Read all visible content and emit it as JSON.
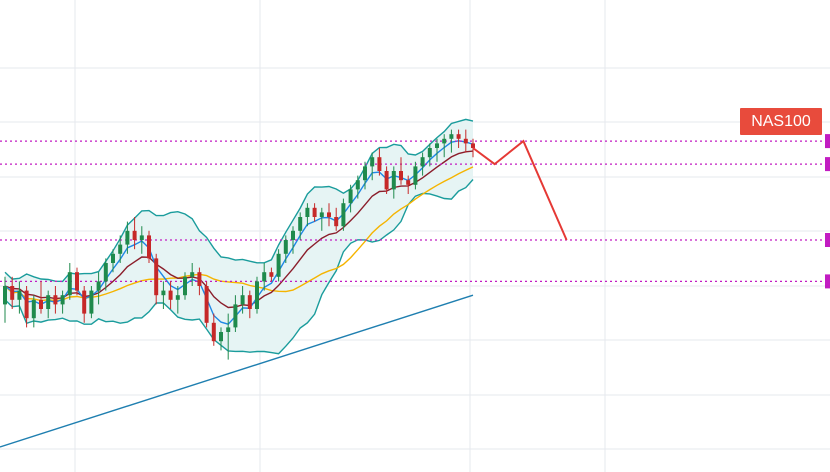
{
  "symbol": "NAS100",
  "colors": {
    "background": "#ffffff",
    "grid": "#e6e9ee",
    "candle_up": "#1f8a4c",
    "candle_down": "#c62828",
    "bollinger_band": "#1a9c9c",
    "bollinger_fill": "#e6f4f4",
    "ma_fast": "#1e88e5",
    "ma_mid": "#8b1e2b",
    "ma_slow": "#f5b400",
    "trendline": "#1f7fb0",
    "levels": "#c21cc2",
    "projection": "#e53935",
    "tag": "#e84b3c"
  },
  "chart_data": {
    "type": "candlestick",
    "title": "",
    "xlabel": "",
    "ylabel": "",
    "ylim": [
      0,
      100
    ],
    "grid": true,
    "indicators": [
      "bollinger-bands",
      "moving-average-fast",
      "moving-average-mid",
      "moving-average-slow",
      "ascending-trendline"
    ],
    "horizontal_levels": [
      71.5,
      66.5,
      50,
      41
    ],
    "candles": [
      {
        "o": 36,
        "h": 42,
        "l": 32,
        "c": 40
      },
      {
        "o": 40,
        "h": 42,
        "l": 35,
        "c": 37
      },
      {
        "o": 37,
        "h": 41,
        "l": 34,
        "c": 39
      },
      {
        "o": 39,
        "h": 40,
        "l": 31,
        "c": 33
      },
      {
        "o": 33,
        "h": 38,
        "l": 31,
        "c": 37
      },
      {
        "o": 37,
        "h": 41,
        "l": 34,
        "c": 35
      },
      {
        "o": 35,
        "h": 39,
        "l": 33,
        "c": 38
      },
      {
        "o": 38,
        "h": 40,
        "l": 34,
        "c": 36
      },
      {
        "o": 36,
        "h": 39,
        "l": 34,
        "c": 38
      },
      {
        "o": 38,
        "h": 45,
        "l": 37,
        "c": 43
      },
      {
        "o": 43,
        "h": 44,
        "l": 38,
        "c": 39
      },
      {
        "o": 39,
        "h": 40,
        "l": 32,
        "c": 34
      },
      {
        "o": 34,
        "h": 40,
        "l": 33,
        "c": 39
      },
      {
        "o": 39,
        "h": 43,
        "l": 36,
        "c": 41
      },
      {
        "o": 41,
        "h": 46,
        "l": 39,
        "c": 45
      },
      {
        "o": 45,
        "h": 48,
        "l": 43,
        "c": 47
      },
      {
        "o": 47,
        "h": 51,
        "l": 45,
        "c": 49
      },
      {
        "o": 49,
        "h": 54,
        "l": 47,
        "c": 52
      },
      {
        "o": 52,
        "h": 55,
        "l": 48,
        "c": 50
      },
      {
        "o": 50,
        "h": 53,
        "l": 47,
        "c": 51
      },
      {
        "o": 51,
        "h": 52,
        "l": 45,
        "c": 46
      },
      {
        "o": 46,
        "h": 47,
        "l": 36,
        "c": 38
      },
      {
        "o": 38,
        "h": 41,
        "l": 35,
        "c": 39
      },
      {
        "o": 39,
        "h": 41,
        "l": 35,
        "c": 37
      },
      {
        "o": 37,
        "h": 40,
        "l": 34,
        "c": 38
      },
      {
        "o": 38,
        "h": 43,
        "l": 37,
        "c": 42
      },
      {
        "o": 42,
        "h": 45,
        "l": 40,
        "c": 43
      },
      {
        "o": 43,
        "h": 44,
        "l": 38,
        "c": 40
      },
      {
        "o": 40,
        "h": 41,
        "l": 31,
        "c": 32
      },
      {
        "o": 32,
        "h": 34,
        "l": 27,
        "c": 28
      },
      {
        "o": 28,
        "h": 31,
        "l": 26,
        "c": 30
      },
      {
        "o": 30,
        "h": 34,
        "l": 24,
        "c": 31
      },
      {
        "o": 31,
        "h": 38,
        "l": 30,
        "c": 36
      },
      {
        "o": 36,
        "h": 40,
        "l": 34,
        "c": 38
      },
      {
        "o": 38,
        "h": 39,
        "l": 33,
        "c": 35
      },
      {
        "o": 35,
        "h": 42,
        "l": 34,
        "c": 41
      },
      {
        "o": 41,
        "h": 45,
        "l": 39,
        "c": 43
      },
      {
        "o": 43,
        "h": 44,
        "l": 41,
        "c": 42
      },
      {
        "o": 42,
        "h": 48,
        "l": 41,
        "c": 47
      },
      {
        "o": 47,
        "h": 51,
        "l": 45,
        "c": 50
      },
      {
        "o": 50,
        "h": 53,
        "l": 47,
        "c": 52
      },
      {
        "o": 52,
        "h": 56,
        "l": 50,
        "c": 55
      },
      {
        "o": 55,
        "h": 58,
        "l": 53,
        "c": 57
      },
      {
        "o": 57,
        "h": 58,
        "l": 54,
        "c": 55
      },
      {
        "o": 55,
        "h": 57,
        "l": 52,
        "c": 56
      },
      {
        "o": 56,
        "h": 58,
        "l": 53,
        "c": 55
      },
      {
        "o": 55,
        "h": 57,
        "l": 52,
        "c": 53
      },
      {
        "o": 53,
        "h": 59,
        "l": 52,
        "c": 58
      },
      {
        "o": 58,
        "h": 62,
        "l": 56,
        "c": 61
      },
      {
        "o": 61,
        "h": 64,
        "l": 59,
        "c": 63
      },
      {
        "o": 63,
        "h": 67,
        "l": 61,
        "c": 66
      },
      {
        "o": 66,
        "h": 69,
        "l": 63,
        "c": 68
      },
      {
        "o": 68,
        "h": 70,
        "l": 64,
        "c": 65
      },
      {
        "o": 65,
        "h": 66,
        "l": 60,
        "c": 61
      },
      {
        "o": 61,
        "h": 66,
        "l": 59,
        "c": 65
      },
      {
        "o": 65,
        "h": 68,
        "l": 62,
        "c": 63
      },
      {
        "o": 63,
        "h": 64,
        "l": 60,
        "c": 62
      },
      {
        "o": 62,
        "h": 67,
        "l": 61,
        "c": 66
      },
      {
        "o": 66,
        "h": 69,
        "l": 64,
        "c": 68
      },
      {
        "o": 68,
        "h": 71,
        "l": 66,
        "c": 70
      },
      {
        "o": 70,
        "h": 72,
        "l": 67,
        "c": 71
      },
      {
        "o": 71,
        "h": 73,
        "l": 68,
        "c": 72
      },
      {
        "o": 72,
        "h": 74,
        "l": 69,
        "c": 73
      },
      {
        "o": 73,
        "h": 74,
        "l": 70,
        "c": 72
      },
      {
        "o": 72,
        "h": 74,
        "l": 69,
        "c": 71
      },
      {
        "o": 71,
        "h": 72,
        "l": 68,
        "c": 70
      }
    ],
    "projection_path": [
      [
        0,
        70
      ],
      [
        3,
        66.5
      ],
      [
        7,
        71.5
      ],
      [
        13,
        50
      ]
    ]
  }
}
